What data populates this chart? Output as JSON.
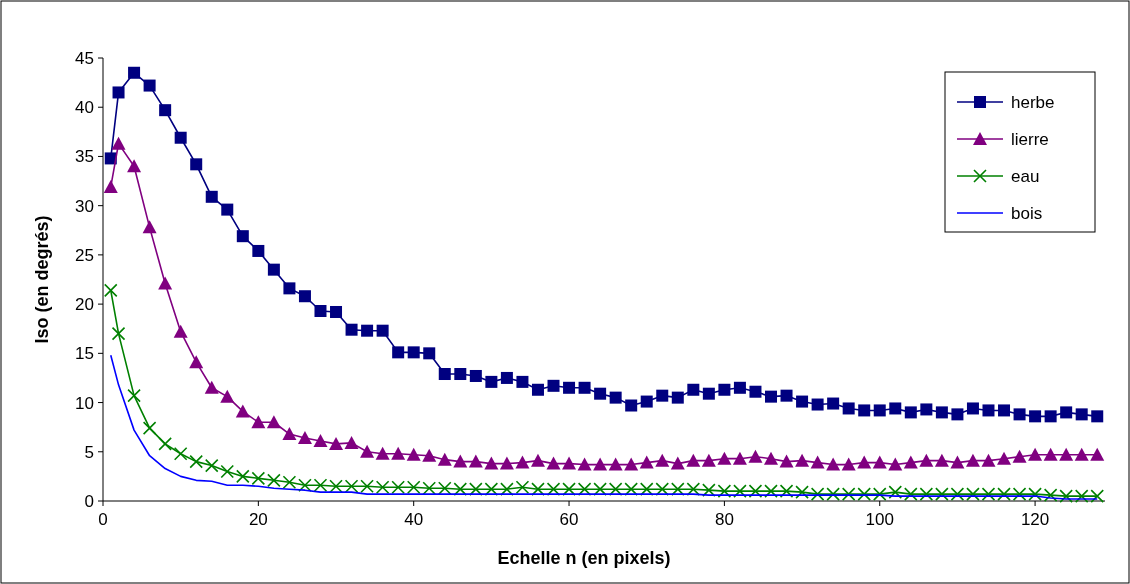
{
  "chart_data": {
    "type": "line",
    "xlabel": "Echelle n (en pixels)",
    "ylabel": "Iso (en degrés)",
    "x": [
      1,
      2,
      4,
      6,
      8,
      10,
      12,
      14,
      16,
      18,
      20,
      22,
      24,
      26,
      28,
      30,
      32,
      34,
      36,
      38,
      40,
      42,
      44,
      46,
      48,
      50,
      52,
      54,
      56,
      58,
      60,
      62,
      64,
      66,
      68,
      70,
      72,
      74,
      76,
      78,
      80,
      82,
      84,
      86,
      88,
      90,
      92,
      94,
      96,
      98,
      100,
      102,
      104,
      106,
      108,
      110,
      112,
      114,
      116,
      118,
      120,
      122,
      124,
      126,
      128
    ],
    "series": [
      {
        "name": "herbe",
        "color": "#000080",
        "marker": "square",
        "values": [
          34.8,
          41.5,
          43.5,
          42.2,
          39.7,
          36.9,
          34.2,
          30.9,
          29.6,
          26.9,
          25.4,
          23.5,
          21.6,
          20.8,
          19.3,
          19.2,
          17.4,
          17.3,
          17.3,
          15.1,
          15.1,
          15.0,
          12.9,
          12.9,
          12.7,
          12.1,
          12.5,
          12.1,
          11.3,
          11.7,
          11.5,
          11.5,
          10.9,
          10.5,
          9.7,
          10.1,
          10.7,
          10.5,
          11.3,
          10.9,
          11.3,
          11.5,
          11.1,
          10.6,
          10.7,
          10.1,
          9.8,
          9.9,
          9.4,
          9.2,
          9.2,
          9.4,
          9.0,
          9.3,
          9.0,
          8.8,
          9.4,
          9.2,
          9.2,
          8.8,
          8.6,
          8.6,
          9.0,
          8.8,
          8.6
        ]
      },
      {
        "name": "lierre",
        "color": "#800080",
        "marker": "triangle",
        "values": [
          31.9,
          36.3,
          34.0,
          27.8,
          22.1,
          17.2,
          14.1,
          11.5,
          10.6,
          9.1,
          8.0,
          8.0,
          6.8,
          6.4,
          6.1,
          5.8,
          5.9,
          5.0,
          4.8,
          4.8,
          4.7,
          4.6,
          4.2,
          4.0,
          4.0,
          3.8,
          3.8,
          3.9,
          4.1,
          3.8,
          3.8,
          3.7,
          3.7,
          3.7,
          3.7,
          3.9,
          4.1,
          3.8,
          4.1,
          4.1,
          4.3,
          4.3,
          4.5,
          4.3,
          4.0,
          4.1,
          3.9,
          3.7,
          3.7,
          3.9,
          3.9,
          3.7,
          3.9,
          4.1,
          4.1,
          3.9,
          4.1,
          4.1,
          4.3,
          4.5,
          4.7,
          4.7,
          4.7,
          4.7,
          4.7
        ]
      },
      {
        "name": "eau",
        "color": "#008000",
        "marker": "cross",
        "values": [
          21.4,
          17.0,
          10.7,
          7.4,
          5.8,
          4.8,
          4.0,
          3.6,
          3.0,
          2.5,
          2.3,
          2.1,
          1.9,
          1.6,
          1.6,
          1.5,
          1.5,
          1.5,
          1.4,
          1.4,
          1.4,
          1.3,
          1.3,
          1.2,
          1.2,
          1.2,
          1.2,
          1.4,
          1.2,
          1.2,
          1.2,
          1.2,
          1.2,
          1.2,
          1.2,
          1.2,
          1.2,
          1.2,
          1.2,
          1.1,
          1.0,
          1.0,
          1.0,
          1.0,
          1.0,
          0.9,
          0.7,
          0.7,
          0.7,
          0.7,
          0.7,
          0.9,
          0.7,
          0.7,
          0.7,
          0.7,
          0.7,
          0.7,
          0.7,
          0.7,
          0.7,
          0.6,
          0.5,
          0.5,
          0.5
        ]
      },
      {
        "name": "bois",
        "color": "#0000ff",
        "marker": "none",
        "values": [
          14.8,
          11.8,
          7.2,
          4.6,
          3.3,
          2.5,
          2.1,
          2.0,
          1.6,
          1.6,
          1.5,
          1.3,
          1.2,
          1.1,
          0.9,
          0.9,
          0.9,
          0.7,
          0.7,
          0.7,
          0.7,
          0.7,
          0.7,
          0.7,
          0.7,
          0.7,
          0.7,
          0.7,
          0.7,
          0.7,
          0.7,
          0.7,
          0.7,
          0.7,
          0.7,
          0.7,
          0.7,
          0.7,
          0.7,
          0.6,
          0.6,
          0.6,
          0.6,
          0.6,
          0.6,
          0.6,
          0.6,
          0.6,
          0.6,
          0.6,
          0.6,
          0.5,
          0.5,
          0.5,
          0.5,
          0.5,
          0.5,
          0.5,
          0.5,
          0.5,
          0.5,
          0.3,
          0.2,
          0.2,
          0.2
        ]
      }
    ],
    "xlim": [
      0,
      129
    ],
    "xticks": [
      0,
      20,
      40,
      60,
      80,
      100,
      120
    ],
    "ylim": [
      0,
      45
    ],
    "yticks": [
      0,
      5,
      10,
      15,
      20,
      25,
      30,
      35,
      40,
      45
    ],
    "grid": false,
    "legend": "top right"
  }
}
